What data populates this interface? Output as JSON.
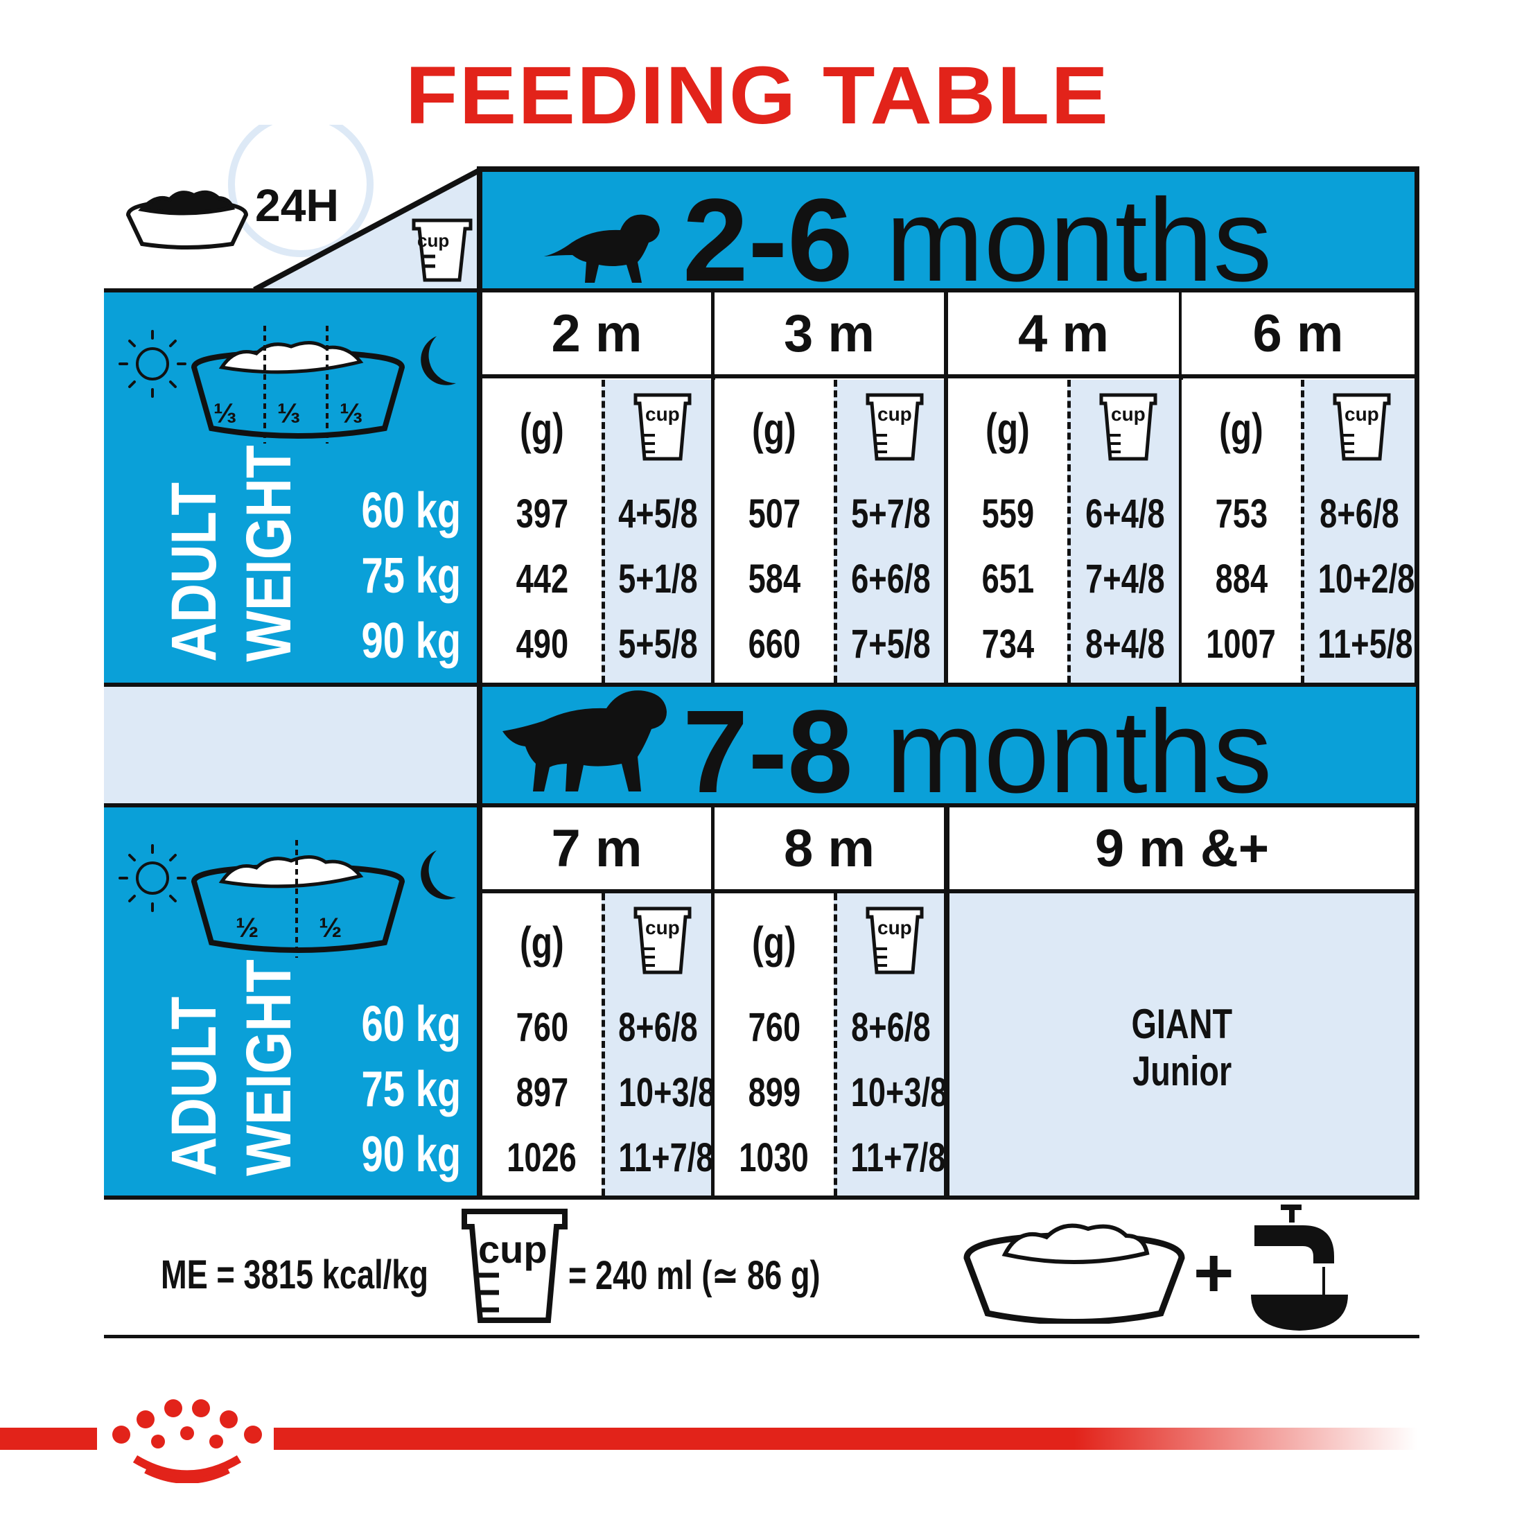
{
  "title": "FEEDING TABLE",
  "corner": {
    "clock_label": "24H",
    "cup_label": "cup"
  },
  "colors": {
    "blue": "#0aa0d8",
    "light_blue": "#dde9f6",
    "red": "#e2231a"
  },
  "sections": [
    {
      "age_num": "2-6",
      "age_unit": "months",
      "portions": [
        "⅓",
        "⅓",
        "⅓"
      ],
      "axis_label_1": "ADULT",
      "axis_label_2": "WEIGHT",
      "weights": [
        "60 kg",
        "75 kg",
        "90 kg"
      ],
      "columns": [
        {
          "label": "2 m",
          "g_label": "(g)",
          "cup_label": "cup",
          "grams": [
            "397",
            "442",
            "490"
          ],
          "cups": [
            "4+5/8",
            "5+1/8",
            "5+5/8"
          ]
        },
        {
          "label": "3 m",
          "g_label": "(g)",
          "cup_label": "cup",
          "grams": [
            "507",
            "584",
            "660"
          ],
          "cups": [
            "5+7/8",
            "6+6/8",
            "7+5/8"
          ]
        },
        {
          "label": "4 m",
          "g_label": "(g)",
          "cup_label": "cup",
          "grams": [
            "559",
            "651",
            "734"
          ],
          "cups": [
            "6+4/8",
            "7+4/8",
            "8+4/8"
          ]
        },
        {
          "label": "6 m",
          "g_label": "(g)",
          "cup_label": "cup",
          "grams": [
            "753",
            "884",
            "1007"
          ],
          "cups": [
            "8+6/8",
            "10+2/8",
            "11+5/8"
          ]
        }
      ]
    },
    {
      "age_num": "7-8",
      "age_unit": "months",
      "portions": [
        "½",
        "½"
      ],
      "axis_label_1": "ADULT",
      "axis_label_2": "WEIGHT",
      "weights": [
        "60 kg",
        "75 kg",
        "90 kg"
      ],
      "columns": [
        {
          "label": "7 m",
          "g_label": "(g)",
          "cup_label": "cup",
          "grams": [
            "760",
            "897",
            "1026"
          ],
          "cups": [
            "8+6/8",
            "10+3/8",
            "11+7/8"
          ]
        },
        {
          "label": "8 m",
          "g_label": "(g)",
          "cup_label": "cup",
          "grams": [
            "760",
            "899",
            "1030"
          ],
          "cups": [
            "8+6/8",
            "10+3/8",
            "11+7/8"
          ]
        }
      ],
      "next": {
        "label": "9 m &+",
        "product_line1": "GIANT",
        "product_line2": "Junior"
      }
    }
  ],
  "footer": {
    "energy": "ME = 3815 kcal/kg",
    "cup_label": "cup",
    "cup_equiv": "= 240 ml (≃ 86 g)",
    "plus": "+"
  }
}
